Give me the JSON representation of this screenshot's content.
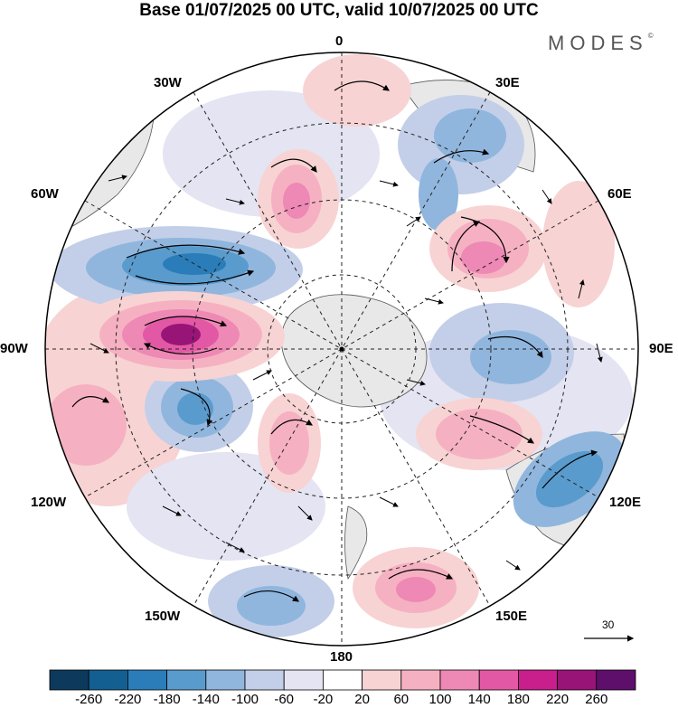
{
  "title": "Base 01/07/2025 00 UTC, valid 10/07/2025 00 UTC",
  "brand": "MODES",
  "brand_mark": "©",
  "longitude_labels": {
    "lon_0": "0",
    "lon_30e": "30E",
    "lon_60e": "60E",
    "lon_90e": "90E",
    "lon_120e": "120E",
    "lon_150e": "150E",
    "lon_180": "180",
    "lon_150w": "150W",
    "lon_120w": "120W",
    "lon_90w": "90W",
    "lon_60w": "60W",
    "lon_30w": "30W"
  },
  "reference_vector": "30",
  "colorbar": {
    "labels": [
      "-260",
      "-220",
      "-180",
      "-140",
      "-100",
      "-60",
      "-20",
      "20",
      "60",
      "100",
      "140",
      "180",
      "220",
      "260"
    ],
    "colors": [
      "#0d3a5c",
      "#135f91",
      "#2a7db8",
      "#5a9bcd",
      "#90b6de",
      "#c3cfe8",
      "#e4e4f2",
      "#ffffff",
      "#f8d3d3",
      "#f5b1c2",
      "#ee88b4",
      "#e358a5",
      "#c81f8c",
      "#981477",
      "#5e0f6b"
    ]
  },
  "colors": {
    "land": "#e8e8e8",
    "coast": "#555555",
    "grid": "#222222"
  }
}
